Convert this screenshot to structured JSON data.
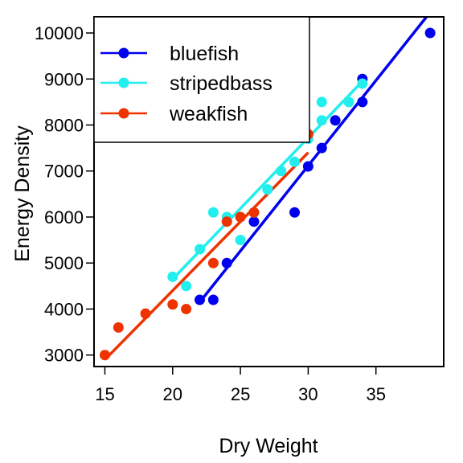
{
  "chart_data": {
    "type": "scatter",
    "title": "",
    "xlabel": "Dry Weight",
    "ylabel": "Energy Density",
    "xlim": [
      14.2,
      40.0
    ],
    "ylim": [
      2750,
      10350
    ],
    "xticks": [
      "15",
      "20",
      "25",
      "30",
      "35"
    ],
    "yticks": [
      "3000",
      "4000",
      "5000",
      "6000",
      "7000",
      "8000",
      "9000",
      "10000"
    ],
    "grid": false,
    "legend_position": "top-left",
    "series": [
      {
        "name": "bluefish",
        "color": "#0000ee",
        "points": [
          {
            "x": 22,
            "y": 4200
          },
          {
            "x": 23,
            "y": 4200
          },
          {
            "x": 24,
            "y": 5000
          },
          {
            "x": 26,
            "y": 5900
          },
          {
            "x": 29,
            "y": 6100
          },
          {
            "x": 30,
            "y": 7100
          },
          {
            "x": 31,
            "y": 7500
          },
          {
            "x": 32,
            "y": 8100
          },
          {
            "x": 34,
            "y": 8500
          },
          {
            "x": 34,
            "y": 9000
          },
          {
            "x": 39,
            "y": 10000
          }
        ],
        "fit": {
          "x": [
            22,
            39
          ],
          "y": [
            4150,
            10450
          ]
        }
      },
      {
        "name": "stripedbass",
        "color": "#22eeee",
        "points": [
          {
            "x": 20,
            "y": 4700
          },
          {
            "x": 21,
            "y": 4500
          },
          {
            "x": 22,
            "y": 5300
          },
          {
            "x": 23,
            "y": 6100
          },
          {
            "x": 24,
            "y": 6000
          },
          {
            "x": 25,
            "y": 5500
          },
          {
            "x": 26,
            "y": 6100
          },
          {
            "x": 27,
            "y": 6600
          },
          {
            "x": 28,
            "y": 7000
          },
          {
            "x": 29,
            "y": 7200
          },
          {
            "x": 30,
            "y": 7700
          },
          {
            "x": 31,
            "y": 8100
          },
          {
            "x": 31,
            "y": 8500
          },
          {
            "x": 33,
            "y": 8500
          },
          {
            "x": 34,
            "y": 8900
          }
        ],
        "fit": {
          "x": [
            20,
            34
          ],
          "y": [
            4650,
            8950
          ]
        }
      },
      {
        "name": "weakfish",
        "color": "#ee3300",
        "points": [
          {
            "x": 15,
            "y": 3000
          },
          {
            "x": 16,
            "y": 3600
          },
          {
            "x": 18,
            "y": 3900
          },
          {
            "x": 20,
            "y": 4100
          },
          {
            "x": 21,
            "y": 4000
          },
          {
            "x": 23,
            "y": 5000
          },
          {
            "x": 24,
            "y": 5900
          },
          {
            "x": 25,
            "y": 6000
          },
          {
            "x": 26,
            "y": 6100
          },
          {
            "x": 30,
            "y": 7800
          }
        ],
        "fit": {
          "x": [
            15,
            30
          ],
          "y": [
            2900,
            7400
          ]
        }
      }
    ]
  }
}
